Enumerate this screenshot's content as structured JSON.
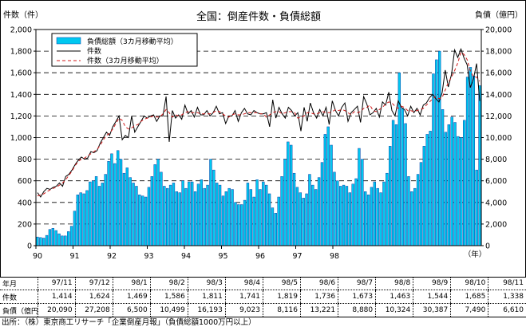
{
  "chart_data": {
    "type": "bar+line",
    "title": "全国：倒産件数・負債総額",
    "left_axis_label": "件数（件）",
    "right_axis_label": "負債（億円）",
    "x_unit_label": "（年）",
    "left_ylim": [
      0,
      2000
    ],
    "right_ylim": [
      0,
      20000
    ],
    "left_ticks": [
      "0",
      "200",
      "400",
      "600",
      "800",
      "1,000",
      "1,200",
      "1,400",
      "1,600",
      "1,800",
      "2,000"
    ],
    "right_ticks": [
      "0",
      "2,000",
      "4,000",
      "6,000",
      "8,000",
      "10,000",
      "12,000",
      "14,000",
      "16,000",
      "18,000",
      "20,000"
    ],
    "year_labels": [
      "90",
      "91",
      "92",
      "93",
      "94",
      "95",
      "96",
      "97",
      "98"
    ],
    "grid": "horizontal dashed",
    "legend": {
      "position": "top-left",
      "items": [
        "負債総額（3カ月移動平均）",
        "件数",
        "件数（3カ月移動平均）"
      ]
    },
    "series": [
      {
        "name": "負債総額（3カ月移動平均）",
        "axis": "right",
        "color": "#00c8f0",
        "values": [
          800,
          750,
          700,
          950,
          1500,
          1600,
          1400,
          1100,
          900,
          900,
          1300,
          1800,
          3200,
          4700,
          4900,
          4800,
          5100,
          5900,
          6000,
          6400,
          5500,
          5800,
          6600,
          7800,
          8500,
          7600,
          8800,
          8000,
          6700,
          7200,
          6300,
          5800,
          5500,
          4700,
          4600,
          4500,
          5400,
          6400,
          7500,
          8000,
          6800,
          5500,
          5300,
          5600,
          5800,
          5000,
          4900,
          6000,
          5300,
          5900,
          5900,
          5000,
          5700,
          6100,
          5300,
          5600,
          8000,
          7000,
          5800,
          5600,
          4600,
          5000,
          5300,
          5200,
          4000,
          3800,
          3800,
          4200,
          5800,
          5200,
          4500,
          6100,
          5200,
          5900,
          5600,
          4800,
          3500,
          3000,
          4500,
          6400,
          8000,
          9600,
          9300,
          6700,
          5400,
          4900,
          4400,
          4800,
          6600,
          5600,
          5200,
          6300,
          7700,
          10300,
          11000,
          9300,
          6800,
          6000,
          5500,
          5600,
          5500,
          4900,
          5700,
          6200,
          9000,
          8000,
          5000,
          4700,
          5400,
          5900,
          5300,
          4900,
          5900,
          6700,
          9200,
          11600,
          11200,
          16000,
          12700,
          11300,
          6400,
          5000,
          5300,
          6600,
          7700,
          9200,
          10300,
          10600,
          15900,
          17200,
          18000,
          12600,
          10500,
          11200,
          11900,
          11400,
          10100,
          10000,
          11600,
          15600,
          16500,
          15700,
          7000,
          14800
        ]
      },
      {
        "name": "件数",
        "axis": "left",
        "color": "#000000",
        "values": [
          490,
          450,
          500,
          530,
          520,
          540,
          550,
          580,
          550,
          640,
          660,
          700,
          750,
          790,
          820,
          800,
          810,
          870,
          860,
          880,
          950,
          1000,
          1050,
          1020,
          1100,
          1150,
          1200,
          980,
          1020,
          1000,
          1200,
          1050,
          1100,
          1150,
          1200,
          1180,
          1200,
          1210,
          1150,
          1200,
          1200,
          1380,
          960,
          1250,
          1180,
          1210,
          1170,
          1300,
          1220,
          1250,
          1190,
          1280,
          1210,
          1210,
          1250,
          1200,
          1230,
          1290,
          1220,
          1230,
          1130,
          1200,
          1200,
          1250,
          1150,
          1230,
          1270,
          1220,
          1210,
          1250,
          1230,
          1220,
          1220,
          1230,
          1100,
          1350,
          1180,
          1280,
          1220,
          1180,
          1280,
          1250,
          1200,
          1230,
          1060,
          1280,
          1150,
          1320,
          1230,
          1180,
          1260,
          1200,
          1280,
          1120,
          1340,
          1250,
          1200,
          1280,
          1320,
          1150,
          1230,
          1260,
          1290,
          1140,
          1380,
          1310,
          1210,
          1230,
          1270,
          1190,
          1330,
          1300,
          1420,
          1250,
          1200,
          1340,
          1280,
          1260,
          1200,
          1290,
          1230,
          1270,
          1210,
          1300,
          1320,
          1370,
          1400,
          1360,
          1330,
          1414,
          1624,
          1469,
          1586,
          1811,
          1741,
          1819,
          1736,
          1673,
          1463,
          1544,
          1685,
          1338
        ]
      },
      {
        "name": "件数（3カ月移動平均）",
        "axis": "left",
        "color": "#d01818",
        "values": [
          460,
          470,
          480,
          500,
          515,
          530,
          540,
          560,
          580,
          610,
          650,
          690,
          740,
          780,
          800,
          810,
          830,
          850,
          870,
          890,
          930,
          980,
          1020,
          1040,
          1080,
          1130,
          1180,
          1160,
          1100,
          1080,
          1090,
          1110,
          1120,
          1150,
          1170,
          1180,
          1190,
          1200,
          1190,
          1190,
          1220,
          1260,
          1230,
          1190,
          1210,
          1200,
          1210,
          1230,
          1240,
          1230,
          1230,
          1230,
          1220,
          1220,
          1220,
          1220,
          1230,
          1250,
          1240,
          1220,
          1200,
          1190,
          1210,
          1220,
          1210,
          1210,
          1220,
          1230,
          1230,
          1230,
          1230,
          1220,
          1220,
          1190,
          1210,
          1230,
          1240,
          1240,
          1220,
          1230,
          1240,
          1240,
          1230,
          1180,
          1190,
          1200,
          1230,
          1230,
          1220,
          1220,
          1230,
          1240,
          1230,
          1230,
          1240,
          1260,
          1250,
          1260,
          1250,
          1230,
          1210,
          1240,
          1230,
          1240,
          1270,
          1280,
          1300,
          1250,
          1240,
          1260,
          1280,
          1310,
          1330,
          1320,
          1290,
          1270,
          1290,
          1280,
          1250,
          1250,
          1240,
          1250,
          1260,
          1270,
          1300,
          1330,
          1360,
          1380,
          1360,
          1370,
          1440,
          1510,
          1560,
          1620,
          1690,
          1790,
          1770,
          1720,
          1620,
          1560,
          1560,
          1520
        ]
      }
    ],
    "table": {
      "header": [
        "年月",
        "97/11",
        "97/12",
        "98/1",
        "98/2",
        "98/3",
        "98/4",
        "98/5",
        "98/6",
        "98/7",
        "98/8",
        "98/9",
        "98/10",
        "98/11"
      ],
      "rows": [
        [
          "件数",
          "1,414",
          "1,624",
          "1,469",
          "1,586",
          "1,811",
          "1,741",
          "1,819",
          "1,736",
          "1,673",
          "1,463",
          "1,544",
          "1,685",
          "1,338"
        ],
        [
          "負債（億円）",
          "20,090",
          "27,208",
          "6,500",
          "10,499",
          "16,193",
          "9,023",
          "8,116",
          "13,221",
          "8,880",
          "10,324",
          "30,387",
          "7,490",
          "6,610"
        ]
      ]
    },
    "source": "出所：（株）東京商工リサーチ「企業倒産月報」（負債総額1000万円以上）"
  }
}
